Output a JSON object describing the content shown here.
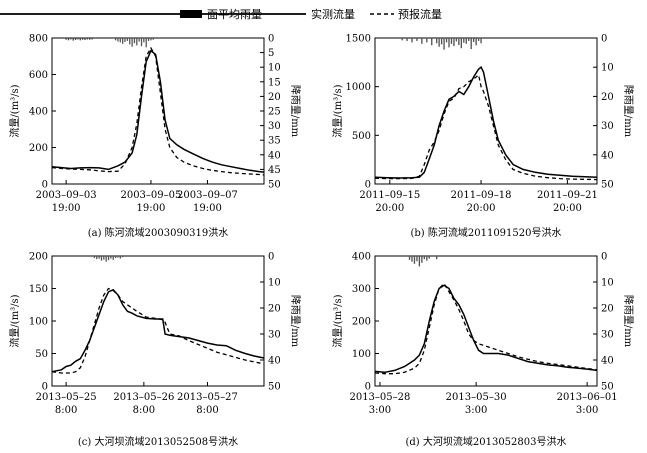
{
  "legend": {
    "rain": "面平均雨量",
    "observed": "实测流量",
    "forecast": "预报流量"
  },
  "chart_data": [
    {
      "type": "line",
      "caption": "(a) 陈河流域2003090319洪水",
      "ylabel": "流量/(m³/s)",
      "y2label": "降雨量/mm",
      "ylim": [
        0,
        800
      ],
      "yticks": [
        0,
        200,
        400,
        600,
        800
      ],
      "y2lim": [
        0,
        50
      ],
      "y2ticks": [
        0,
        5,
        10,
        15,
        20,
        25,
        30,
        35,
        40,
        45,
        50
      ],
      "xlim": [
        0,
        90
      ],
      "xticks": [
        {
          "x": 6,
          "label": [
            "2003–09–03",
            "19:00"
          ]
        },
        {
          "x": 42,
          "label": [
            "2003–09–05",
            "19:00"
          ]
        },
        {
          "x": 66,
          "label": [
            "2003–09–07",
            "19:00"
          ]
        }
      ],
      "series": [
        {
          "name": "实测流量",
          "x": [
            0,
            4,
            8,
            12,
            16,
            20,
            24,
            28,
            31,
            34,
            36,
            38,
            40,
            42,
            44,
            46,
            48,
            50,
            53,
            56,
            60,
            64,
            68,
            72,
            76,
            80,
            84,
            88,
            90
          ],
          "y": [
            95,
            90,
            85,
            88,
            90,
            88,
            80,
            100,
            120,
            170,
            270,
            480,
            670,
            730,
            710,
            560,
            350,
            250,
            215,
            190,
            165,
            140,
            120,
            105,
            95,
            85,
            75,
            68,
            65
          ]
        },
        {
          "name": "预报流量",
          "x": [
            0,
            4,
            8,
            12,
            16,
            20,
            24,
            28,
            31,
            34,
            36,
            38,
            40,
            42,
            44,
            46,
            48,
            50,
            53,
            56,
            60,
            64,
            68,
            72,
            76,
            80,
            84,
            88,
            90
          ],
          "y": [
            90,
            85,
            82,
            80,
            78,
            72,
            68,
            70,
            110,
            200,
            330,
            530,
            700,
            745,
            700,
            500,
            300,
            200,
            145,
            120,
            100,
            85,
            75,
            68,
            62,
            58,
            55,
            52,
            50
          ]
        }
      ],
      "rain": {
        "x": [
          27,
          28,
          29,
          30,
          31,
          32,
          33,
          34,
          35,
          36,
          37,
          38,
          39,
          40,
          41,
          42,
          43
        ],
        "y": [
          0.8,
          1.2,
          1.5,
          2.0,
          1.4,
          1.0,
          2.2,
          3.0,
          1.8,
          2.5,
          1.2,
          2.8,
          1.5,
          3.2,
          1.0,
          0.8,
          0.6
        ]
      },
      "rain_top": {
        "x": [
          6,
          7,
          8,
          9,
          10,
          11,
          12,
          13,
          14,
          15,
          16,
          17
        ],
        "y": [
          0.6,
          0.8,
          0.5,
          0.9,
          0.7,
          0.5,
          0.8,
          0.6,
          0.7,
          0.5,
          0.6,
          0.5
        ]
      }
    },
    {
      "type": "line",
      "caption": "(b) 陈河流域2011091520号洪水",
      "ylabel": "流量/(m³/s)",
      "y2label": "降雨量/mm",
      "ylim": [
        0,
        1500
      ],
      "yticks": [
        0,
        500,
        1000,
        1500
      ],
      "y2lim": [
        0,
        50
      ],
      "y2ticks": [
        0,
        10,
        20,
        30,
        40,
        50
      ],
      "xlim": [
        0,
        90
      ],
      "xticks": [
        {
          "x": 6,
          "label": [
            "2011–09–15",
            "20:00"
          ]
        },
        {
          "x": 43,
          "label": [
            "2011–09–18",
            "20:00"
          ]
        },
        {
          "x": 78,
          "label": [
            "2011–09–21",
            "20:00"
          ]
        }
      ],
      "series": [
        {
          "name": "实测流量",
          "x": [
            0,
            5,
            10,
            15,
            18,
            20,
            22,
            24,
            26,
            28,
            30,
            32,
            34,
            36,
            38,
            40,
            42,
            43,
            44,
            46,
            48,
            50,
            53,
            56,
            60,
            65,
            70,
            75,
            80,
            85,
            90
          ],
          "y": [
            70,
            65,
            62,
            65,
            70,
            120,
            260,
            400,
            600,
            750,
            870,
            900,
            950,
            920,
            1000,
            1100,
            1180,
            1200,
            1150,
            900,
            650,
            450,
            300,
            200,
            150,
            120,
            100,
            90,
            80,
            75,
            70
          ]
        },
        {
          "name": "预报流量",
          "x": [
            0,
            5,
            10,
            15,
            18,
            20,
            22,
            24,
            26,
            28,
            30,
            32,
            34,
            36,
            38,
            40,
            42,
            43,
            44,
            46,
            48,
            50,
            53,
            56,
            60,
            65,
            70,
            75,
            80,
            85,
            90
          ],
          "y": [
            60,
            55,
            55,
            58,
            80,
            200,
            350,
            430,
            550,
            720,
            850,
            880,
            980,
            1000,
            1050,
            1080,
            1120,
            1000,
            950,
            800,
            600,
            400,
            250,
            150,
            110,
            80,
            65,
            55,
            50,
            48,
            45
          ]
        }
      ],
      "rain": {
        "x": [
          11,
          13,
          15,
          17,
          19,
          21,
          23,
          25,
          26,
          27,
          28,
          29,
          30,
          31,
          32,
          33,
          34,
          35,
          36,
          37,
          38,
          39,
          40,
          41,
          42,
          43
        ],
        "y": [
          0.8,
          1.0,
          1.5,
          1.0,
          2.0,
          1.5,
          2.5,
          1.8,
          3.0,
          2.2,
          4.0,
          1.5,
          3.2,
          2.0,
          2.8,
          1.2,
          2.4,
          3.5,
          1.6,
          2.0,
          1.0,
          3.8,
          1.4,
          2.5,
          1.0,
          1.8
        ]
      }
    },
    {
      "type": "line",
      "caption": "(c) 大河坝流域2013052508号洪水",
      "ylabel": "流量/(m³/s)",
      "y2label": "降雨量/mm",
      "ylim": [
        0,
        200
      ],
      "yticks": [
        0,
        50,
        100,
        150,
        200
      ],
      "y2lim": [
        0,
        50
      ],
      "y2ticks": [
        0,
        10,
        20,
        30,
        40,
        50
      ],
      "xlim": [
        0,
        90
      ],
      "xticks": [
        {
          "x": 6,
          "label": [
            "2013–05–25",
            "8:00"
          ]
        },
        {
          "x": 39,
          "label": [
            "2013–05–26",
            "8:00"
          ]
        },
        {
          "x": 66,
          "label": [
            "2013–05–27",
            "8:00"
          ]
        }
      ],
      "series": [
        {
          "name": "实测流量",
          "x": [
            0,
            4,
            6,
            8,
            10,
            12,
            14,
            16,
            18,
            20,
            22,
            24,
            26,
            28,
            30,
            32,
            34,
            36,
            40,
            44,
            47,
            48,
            50,
            54,
            58,
            62,
            66,
            70,
            74,
            78,
            82,
            86,
            90
          ],
          "y": [
            22,
            25,
            30,
            32,
            38,
            42,
            55,
            70,
            90,
            110,
            130,
            145,
            148,
            140,
            125,
            115,
            112,
            108,
            104,
            103,
            103,
            80,
            78,
            76,
            74,
            70,
            66,
            63,
            62,
            55,
            50,
            46,
            43
          ]
        },
        {
          "name": "预报流量",
          "x": [
            0,
            4,
            6,
            8,
            10,
            12,
            14,
            16,
            18,
            20,
            22,
            24,
            26,
            28,
            30,
            32,
            34,
            36,
            40,
            44,
            47,
            48,
            50,
            54,
            58,
            62,
            66,
            70,
            74,
            78,
            82,
            86,
            90
          ],
          "y": [
            22,
            20,
            20,
            20,
            22,
            28,
            45,
            70,
            95,
            120,
            140,
            150,
            147,
            140,
            130,
            125,
            120,
            115,
            106,
            104,
            102,
            98,
            80,
            77,
            70,
            64,
            58,
            52,
            48,
            44,
            40,
            37,
            34
          ]
        }
      ],
      "rain": {
        "x": [
          18,
          19,
          20,
          21,
          22,
          23,
          24,
          25,
          26,
          27,
          28,
          29,
          30
        ],
        "y": [
          0.8,
          1.2,
          1.0,
          1.8,
          1.4,
          2.2,
          1.6,
          1.0,
          1.5,
          0.8,
          0.6,
          1.0,
          0.5
        ]
      }
    },
    {
      "type": "line",
      "caption": "(d) 大河坝流域2013052803号洪水",
      "ylabel": "流量/(m³/s)",
      "y2label": "降雨量/mm",
      "ylim": [
        0,
        400
      ],
      "yticks": [
        0,
        100,
        200,
        300,
        400
      ],
      "y2lim": [
        0,
        50
      ],
      "y2ticks": [
        0,
        10,
        20,
        30,
        40,
        50
      ],
      "xlim": [
        0,
        90
      ],
      "xticks": [
        {
          "x": 2,
          "label": [
            "2013–05–28",
            "3:00"
          ]
        },
        {
          "x": 41,
          "label": [
            "2013–05–30",
            "3:00"
          ]
        },
        {
          "x": 86,
          "label": [
            "2013–06–01",
            "3:00"
          ]
        }
      ],
      "series": [
        {
          "name": "实测流量",
          "x": [
            0,
            4,
            8,
            12,
            16,
            18,
            20,
            22,
            24,
            26,
            28,
            30,
            32,
            34,
            36,
            38,
            40,
            42,
            44,
            46,
            50,
            54,
            58,
            62,
            66,
            70,
            74,
            78,
            82,
            86,
            90
          ],
          "y": [
            45,
            42,
            48,
            60,
            80,
            95,
            130,
            200,
            260,
            300,
            310,
            300,
            270,
            250,
            220,
            180,
            140,
            110,
            100,
            100,
            100,
            95,
            85,
            75,
            70,
            65,
            62,
            58,
            55,
            52,
            48
          ]
        },
        {
          "name": "预报流量",
          "x": [
            0,
            4,
            8,
            12,
            16,
            18,
            20,
            22,
            24,
            26,
            28,
            30,
            32,
            34,
            36,
            38,
            40,
            42,
            44,
            46,
            50,
            54,
            58,
            62,
            66,
            70,
            74,
            78,
            82,
            86,
            90
          ],
          "y": [
            40,
            38,
            38,
            42,
            55,
            70,
            110,
            180,
            250,
            300,
            315,
            290,
            265,
            235,
            200,
            160,
            140,
            130,
            125,
            120,
            110,
            100,
            90,
            82,
            75,
            70,
            66,
            62,
            58,
            54,
            50
          ]
        }
      ],
      "rain": {
        "x": [
          14,
          15,
          16,
          17,
          18,
          19,
          20,
          21,
          22,
          25
        ],
        "y": [
          1.5,
          2.2,
          3.0,
          2.0,
          4.0,
          2.6,
          1.2,
          1.8,
          1.0,
          1.2
        ]
      }
    }
  ]
}
